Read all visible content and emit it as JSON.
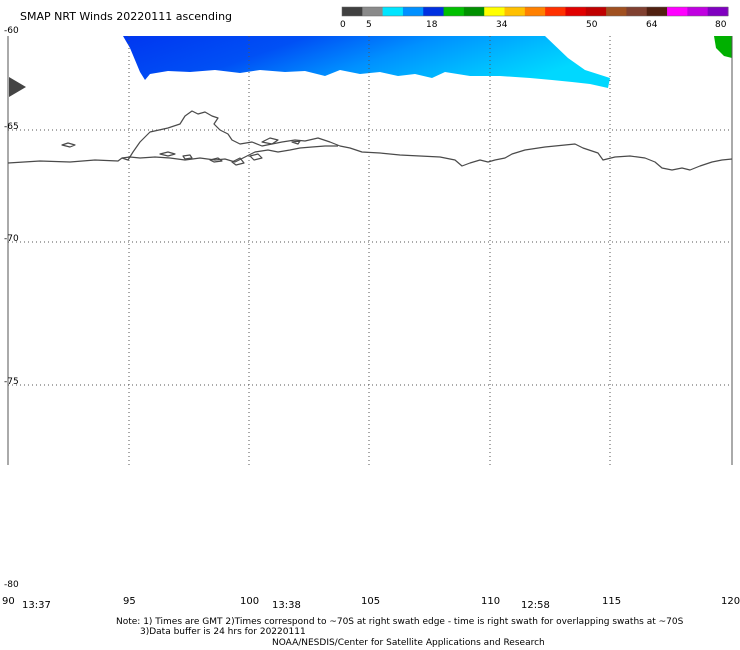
{
  "title": "SMAP NRT Winds 20220111 ascending",
  "colorbar": {
    "labels": [
      "0",
      "5",
      "18",
      "34",
      "50",
      "64",
      "80"
    ],
    "colors": [
      "#404040",
      "#8a8a8a",
      "#00e5ff",
      "#0090ff",
      "#0030e0",
      "#00c000",
      "#009000",
      "#ffff00",
      "#ffc000",
      "#ff8000",
      "#ff3000",
      "#e00000",
      "#c00000",
      "#a05020",
      "#804030",
      "#502010",
      "#ff00ff",
      "#c000e0",
      "#8000c0"
    ]
  },
  "map": {
    "lat_labels": [
      "-60",
      "-65",
      "-70",
      "-75",
      "-80"
    ],
    "lon_labels": [
      "90",
      "95",
      "100",
      "105",
      "110",
      "115",
      "120"
    ],
    "times": [
      "13:37",
      "13:38",
      "12:58"
    ],
    "colors": {
      "swath_dark": "#0030e8",
      "swath_light": "#00c8ff",
      "high_wind_patch": "#00b000",
      "coastline": "#4a4a4a",
      "grid": "#555555",
      "marker": "#444444"
    }
  },
  "notes": {
    "line1": "Note: 1) Times are GMT 2)Times correspond to ~70S at right swath edge - time is right swath for overlapping swaths at ~70S",
    "line2": "3)Data buffer is 24 hrs for 20220111",
    "line3": "NOAA/NESDIS/Center for Satellite Applications and Research"
  },
  "icons": {
    "position_marker": "triangle-right-icon"
  }
}
